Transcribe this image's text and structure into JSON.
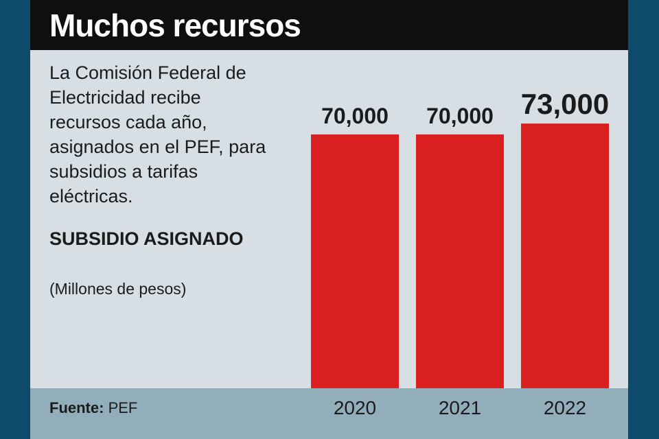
{
  "title": "Muchos recursos",
  "description": "La Comisión Federal de Electricidad recibe recursos cada año, asignados en el PEF, para subsidios a tarifas eléctricas.",
  "subsidy_title": "SUBSIDIO ASIGNADO",
  "unit": "(Millones de pesos)",
  "source_label": "Fuente:",
  "source_value": "PEF",
  "colors": {
    "bar": "#da1f20",
    "panel": "#d7dfe4",
    "title_bar": "#0f0f0f",
    "footer": "#93aebb",
    "border": "#0d4a6c"
  },
  "chart_data": {
    "type": "bar",
    "categories": [
      "2020",
      "2021",
      "2022"
    ],
    "values": [
      70000,
      70000,
      73000
    ],
    "value_labels": [
      "70,000",
      "70,000",
      "73,000"
    ],
    "highlight_index": 2,
    "title": "",
    "xlabel": "",
    "ylabel": "",
    "grid": false
  }
}
